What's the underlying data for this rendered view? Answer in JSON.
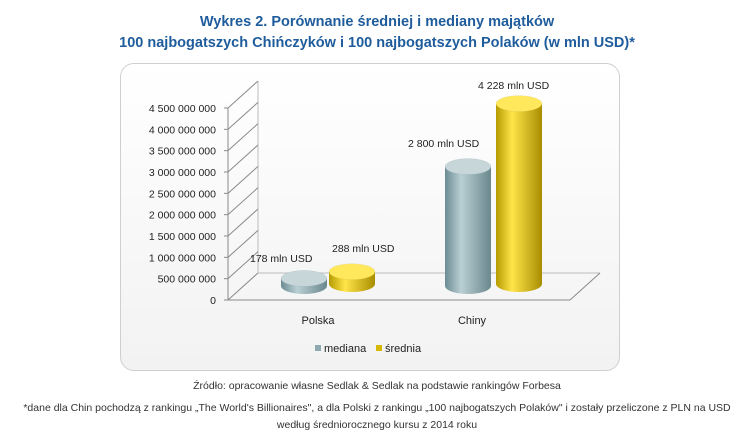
{
  "title_line1": "Wykres 2. Porównanie średniej i mediany majątków",
  "title_line2": "100 najbogatszych Chińczyków i 100 najbogatszych Polaków (w mln USD)*",
  "footer": {
    "source": "Źródło: opracowanie własne Sedlak & Sedlak na podstawie rankingów Forbesa",
    "note1": "*dane dla Chin pochodzą z rankingu „The World's Billionaires\", a dla Polski z rankingu „100 najbogatszych Polaków\" i zostały przeliczone z PLN na USD",
    "note2": "według średniorocznego kursu z 2014 roku"
  },
  "colors": {
    "mediana": "#8eaab0",
    "srednia": "#d6b800",
    "title": "#1f5c9c"
  },
  "chart_data": {
    "type": "bar",
    "style": "3d-cylinder",
    "categories": [
      "Polska",
      "Chiny"
    ],
    "series": [
      {
        "name": "mediana",
        "values": [
          178000000,
          2800000000
        ],
        "labels": [
          "178 mln USD",
          "2 800 mln USD"
        ]
      },
      {
        "name": "średnia",
        "values": [
          288000000,
          4228000000
        ],
        "labels": [
          "288 mln USD",
          "4 228 mln USD"
        ]
      }
    ],
    "yticks": [
      "0",
      "500 000 000",
      "1 000 000 000",
      "1 500 000 000",
      "2 000 000 000",
      "2 500 000 000",
      "3 000 000 000",
      "3 500 000 000",
      "4 000 000 000",
      "4 500 000 000"
    ],
    "ylim": [
      0,
      4500000000
    ],
    "grid": false,
    "legend": "bottom"
  }
}
